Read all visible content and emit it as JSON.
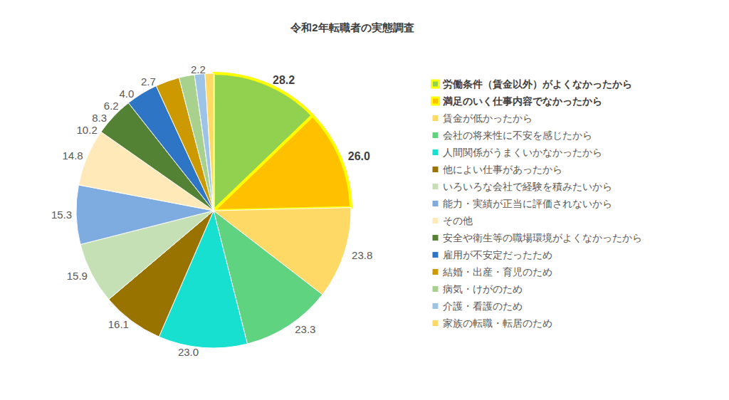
{
  "chart_data": {
    "type": "pie",
    "title": "令和2年転職者の実態調査",
    "categories": [
      "労働条件（賃金以外）がよくなかったから",
      "満足のいく仕事内容でなかったから",
      "賃金が低かったから",
      "会社の将来性に不安を感じたから",
      "人間関係がうまくいかなかったから",
      "他によい仕事があったから",
      "いろいろな会社で経験を積みたいから",
      "能力・実績が正当に評価されないから",
      "その他",
      "安全や衛生等の職場環境がよくなかったから",
      "雇用が不安定だったため",
      "結婚・出産・育児のため",
      "病気・けがのため",
      "介護・看護のため",
      "家族の転職・転居のため"
    ],
    "values": [
      28.2,
      26.0,
      23.8,
      23.3,
      23.0,
      16.1,
      15.9,
      15.3,
      14.8,
      10.2,
      8.3,
      6.2,
      4.0,
      2.7,
      2.2
    ],
    "value_labels": [
      "28.2",
      "26.0",
      "23.8",
      "23.3",
      "23.0",
      "16.1",
      "15.9",
      "15.3",
      "14.8",
      "10.2",
      "8.3",
      "6.2",
      "4.0",
      "2.7",
      "2.2"
    ],
    "colors": [
      "#92d050",
      "#ffc000",
      "#ffd966",
      "#5fd37f",
      "#17e0d0",
      "#997300",
      "#c5e0b4",
      "#7eabe0",
      "#ffe9b8",
      "#548235",
      "#2e75c5",
      "#cc9900",
      "#a9d18e",
      "#9dc3e6",
      "#ffd966"
    ],
    "data_labels": true,
    "legend": "right"
  }
}
